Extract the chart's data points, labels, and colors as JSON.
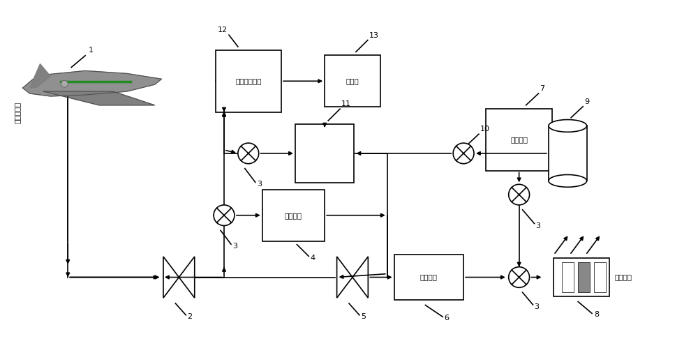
{
  "bg_color": "#ffffff",
  "lc": "#000000",
  "lw": 1.2,
  "inlet_label": "进气道引气",
  "label1": "1",
  "label2": "2",
  "label3": "3",
  "label4": "4",
  "label5": "5",
  "label6": "6",
  "label7": "7",
  "label8": "8",
  "label9": "9",
  "label10": "10",
  "label11": "11",
  "label12": "12",
  "label13": "13",
  "text4": "储热系统",
  "text6": "发动机舱",
  "text7": "外界环境",
  "text8": "高热结构",
  "text12": "其它冷却系统",
  "text13": "燃烧室"
}
